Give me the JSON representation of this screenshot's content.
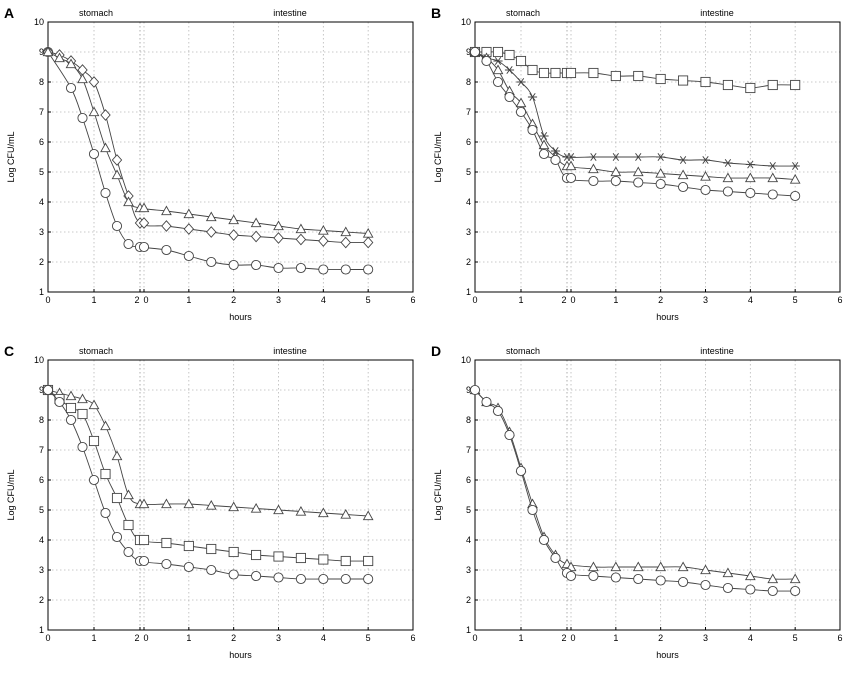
{
  "chart_data": [
    {
      "type": "line",
      "panel_label": "A",
      "ylabel": "Log CFU/mL",
      "xlabel": "hours",
      "stomach_label": "stomach",
      "intestine_label": "intestine",
      "stomach_ticks": [
        "0",
        "1",
        "2"
      ],
      "intestine_ticks": [
        "0",
        "1",
        "2",
        "3",
        "4",
        "5",
        "6"
      ],
      "y_ticks": [
        "1",
        "2",
        "3",
        "4",
        "5",
        "6",
        "7",
        "8",
        "9",
        "10"
      ],
      "xlim_stomach": [
        0,
        2
      ],
      "xlim_intestine": [
        0,
        6
      ],
      "ylim": [
        1,
        10
      ],
      "series": [
        {
          "name": "circle",
          "marker": "circle",
          "stomach": {
            "x": [
              0,
              0.5,
              0.75,
              1.0,
              1.25,
              1.5,
              1.75,
              2.0
            ],
            "y": [
              9.0,
              7.8,
              6.8,
              5.6,
              4.3,
              3.2,
              2.6,
              2.5
            ]
          },
          "intestine": {
            "x": [
              0,
              0.5,
              1.0,
              1.5,
              2.0,
              2.5,
              3.0,
              3.5,
              4.0,
              4.5,
              5.0
            ],
            "y": [
              2.5,
              2.4,
              2.2,
              2.0,
              1.9,
              1.9,
              1.8,
              1.8,
              1.75,
              1.75,
              1.75
            ]
          }
        },
        {
          "name": "diamond",
          "marker": "diamond",
          "stomach": {
            "x": [
              0,
              0.25,
              0.5,
              0.75,
              1.0,
              1.25,
              1.5,
              1.75,
              2.0
            ],
            "y": [
              9.0,
              8.9,
              8.7,
              8.4,
              8.0,
              6.9,
              5.4,
              4.2,
              3.3
            ]
          },
          "intestine": {
            "x": [
              0,
              0.5,
              1.0,
              1.5,
              2.0,
              2.5,
              3.0,
              3.5,
              4.0,
              4.5,
              5.0
            ],
            "y": [
              3.3,
              3.2,
              3.1,
              3.0,
              2.9,
              2.85,
              2.8,
              2.75,
              2.7,
              2.65,
              2.65
            ]
          }
        },
        {
          "name": "triangle",
          "marker": "triangle",
          "stomach": {
            "x": [
              0,
              0.25,
              0.5,
              0.75,
              1.0,
              1.25,
              1.5,
              1.75,
              2.0
            ],
            "y": [
              9.0,
              8.8,
              8.6,
              8.1,
              7.0,
              5.8,
              4.9,
              4.0,
              3.8
            ]
          },
          "intestine": {
            "x": [
              0,
              0.5,
              1.0,
              1.5,
              2.0,
              2.5,
              3.0,
              3.5,
              4.0,
              4.5,
              5.0
            ],
            "y": [
              3.8,
              3.7,
              3.6,
              3.5,
              3.4,
              3.3,
              3.2,
              3.1,
              3.05,
              3.0,
              2.95
            ]
          }
        }
      ]
    },
    {
      "type": "line",
      "panel_label": "B",
      "ylabel": "Log CFU/mL",
      "xlabel": "hours",
      "stomach_label": "stomach",
      "intestine_label": "intestine",
      "stomach_ticks": [
        "0",
        "1",
        "2"
      ],
      "intestine_ticks": [
        "0",
        "1",
        "2",
        "3",
        "4",
        "5",
        "6"
      ],
      "y_ticks": [
        "1",
        "2",
        "3",
        "4",
        "5",
        "6",
        "7",
        "8",
        "9",
        "10"
      ],
      "xlim_stomach": [
        0,
        2
      ],
      "xlim_intestine": [
        0,
        6
      ],
      "ylim": [
        1,
        10
      ],
      "series": [
        {
          "name": "square",
          "marker": "square",
          "stomach": {
            "x": [
              0,
              0.25,
              0.5,
              0.75,
              1.0,
              1.25,
              1.5,
              1.75,
              2.0
            ],
            "y": [
              9.0,
              9.0,
              9.0,
              8.9,
              8.7,
              8.4,
              8.3,
              8.3,
              8.3
            ]
          },
          "intestine": {
            "x": [
              0,
              0.5,
              1.0,
              1.5,
              2.0,
              2.5,
              3.0,
              3.5,
              4.0,
              4.5,
              5.0
            ],
            "y": [
              8.3,
              8.3,
              8.2,
              8.2,
              8.1,
              8.05,
              8.0,
              7.9,
              7.8,
              7.9,
              7.9
            ]
          }
        },
        {
          "name": "star",
          "marker": "star",
          "stomach": {
            "x": [
              0,
              0.25,
              0.5,
              0.75,
              1.0,
              1.25,
              1.5,
              1.75,
              2.0
            ],
            "y": [
              9.0,
              8.8,
              8.7,
              8.4,
              8.0,
              7.5,
              6.2,
              5.7,
              5.5
            ]
          },
          "intestine": {
            "x": [
              0,
              0.5,
              1.0,
              1.5,
              2.0,
              2.5,
              3.0,
              3.5,
              4.0,
              4.5,
              5.0
            ],
            "y": [
              5.5,
              5.5,
              5.5,
              5.5,
              5.5,
              5.4,
              5.4,
              5.3,
              5.25,
              5.2,
              5.2
            ]
          }
        },
        {
          "name": "triangle",
          "marker": "triangle",
          "stomach": {
            "x": [
              0,
              0.25,
              0.5,
              0.75,
              1.0,
              1.25,
              1.5,
              1.75,
              2.0
            ],
            "y": [
              9.0,
              8.8,
              8.4,
              7.7,
              7.3,
              6.6,
              5.9,
              5.5,
              5.2
            ]
          },
          "intestine": {
            "x": [
              0,
              0.5,
              1.0,
              1.5,
              2.0,
              2.5,
              3.0,
              3.5,
              4.0,
              4.5,
              5.0
            ],
            "y": [
              5.2,
              5.1,
              5.0,
              5.0,
              4.95,
              4.9,
              4.85,
              4.8,
              4.8,
              4.8,
              4.75
            ]
          }
        },
        {
          "name": "circle",
          "marker": "circle",
          "stomach": {
            "x": [
              0,
              0.25,
              0.5,
              0.75,
              1.0,
              1.25,
              1.5,
              1.75,
              2.0
            ],
            "y": [
              9.0,
              8.7,
              8.0,
              7.5,
              7.0,
              6.4,
              5.6,
              5.4,
              4.8
            ]
          },
          "intestine": {
            "x": [
              0,
              0.5,
              1.0,
              1.5,
              2.0,
              2.5,
              3.0,
              3.5,
              4.0,
              4.5,
              5.0
            ],
            "y": [
              4.8,
              4.7,
              4.7,
              4.65,
              4.6,
              4.5,
              4.4,
              4.35,
              4.3,
              4.25,
              4.2
            ]
          }
        }
      ]
    },
    {
      "type": "line",
      "panel_label": "C",
      "ylabel": "Log CFU/mL",
      "xlabel": "hours",
      "stomach_label": "stomach",
      "intestine_label": "intestine",
      "stomach_ticks": [
        "0",
        "1",
        "2"
      ],
      "intestine_ticks": [
        "0",
        "1",
        "2",
        "3",
        "4",
        "5",
        "6"
      ],
      "y_ticks": [
        "1",
        "2",
        "3",
        "4",
        "5",
        "6",
        "7",
        "8",
        "9",
        "10"
      ],
      "xlim_stomach": [
        0,
        2
      ],
      "xlim_intestine": [
        0,
        6
      ],
      "ylim": [
        1,
        10
      ],
      "series": [
        {
          "name": "triangle",
          "marker": "triangle",
          "stomach": {
            "x": [
              0,
              0.25,
              0.5,
              0.75,
              1.0,
              1.25,
              1.5,
              1.75,
              2.0
            ],
            "y": [
              9.0,
              8.9,
              8.8,
              8.7,
              8.5,
              7.8,
              6.8,
              5.5,
              5.2
            ]
          },
          "intestine": {
            "x": [
              0,
              0.5,
              1.0,
              1.5,
              2.0,
              2.5,
              3.0,
              3.5,
              4.0,
              4.5,
              5.0
            ],
            "y": [
              5.2,
              5.2,
              5.2,
              5.15,
              5.1,
              5.05,
              5.0,
              4.95,
              4.9,
              4.85,
              4.8
            ]
          }
        },
        {
          "name": "square",
          "marker": "square",
          "stomach": {
            "x": [
              0,
              0.25,
              0.5,
              0.75,
              1.0,
              1.25,
              1.5,
              1.75,
              2.0
            ],
            "y": [
              9.0,
              8.7,
              8.4,
              8.2,
              7.3,
              6.2,
              5.4,
              4.5,
              4.0
            ]
          },
          "intestine": {
            "x": [
              0,
              0.5,
              1.0,
              1.5,
              2.0,
              2.5,
              3.0,
              3.5,
              4.0,
              4.5,
              5.0
            ],
            "y": [
              4.0,
              3.9,
              3.8,
              3.7,
              3.6,
              3.5,
              3.45,
              3.4,
              3.35,
              3.3,
              3.3
            ]
          }
        },
        {
          "name": "circle",
          "marker": "circle",
          "stomach": {
            "x": [
              0,
              0.25,
              0.5,
              0.75,
              1.0,
              1.25,
              1.5,
              1.75,
              2.0
            ],
            "y": [
              9.0,
              8.6,
              8.0,
              7.1,
              6.0,
              4.9,
              4.1,
              3.6,
              3.3
            ]
          },
          "intestine": {
            "x": [
              0,
              0.5,
              1.0,
              1.5,
              2.0,
              2.5,
              3.0,
              3.5,
              4.0,
              4.5,
              5.0
            ],
            "y": [
              3.3,
              3.2,
              3.1,
              3.0,
              2.85,
              2.8,
              2.75,
              2.7,
              2.7,
              2.7,
              2.7
            ]
          }
        }
      ]
    },
    {
      "type": "line",
      "panel_label": "D",
      "ylabel": "Log CFU/mL",
      "xlabel": "hours",
      "stomach_label": "stomach",
      "intestine_label": "intestine",
      "stomach_ticks": [
        "0",
        "1",
        "2"
      ],
      "intestine_ticks": [
        "0",
        "1",
        "2",
        "3",
        "4",
        "5",
        "6"
      ],
      "y_ticks": [
        "1",
        "2",
        "3",
        "4",
        "5",
        "6",
        "7",
        "8",
        "9",
        "10"
      ],
      "xlim_stomach": [
        0,
        2
      ],
      "xlim_intestine": [
        0,
        6
      ],
      "ylim": [
        1,
        10
      ],
      "series": [
        {
          "name": "triangle",
          "marker": "triangle",
          "stomach": {
            "x": [
              0,
              0.25,
              0.5,
              0.75,
              1.0,
              1.25,
              1.5,
              1.75,
              2.0
            ],
            "y": [
              9.0,
              8.6,
              8.4,
              7.6,
              6.4,
              5.2,
              4.1,
              3.5,
              3.2
            ]
          },
          "intestine": {
            "x": [
              0,
              0.5,
              1.0,
              1.5,
              2.0,
              2.5,
              3.0,
              3.5,
              4.0,
              4.5,
              5.0
            ],
            "y": [
              3.1,
              3.1,
              3.1,
              3.1,
              3.1,
              3.1,
              3.0,
              2.9,
              2.8,
              2.7,
              2.7
            ]
          }
        },
        {
          "name": "circle",
          "marker": "circle",
          "stomach": {
            "x": [
              0,
              0.25,
              0.5,
              0.75,
              1.0,
              1.25,
              1.5,
              1.75,
              2.0
            ],
            "y": [
              9.0,
              8.6,
              8.3,
              7.5,
              6.3,
              5.0,
              4.0,
              3.4,
              2.9
            ]
          },
          "intestine": {
            "x": [
              0,
              0.5,
              1.0,
              1.5,
              2.0,
              2.5,
              3.0,
              3.5,
              4.0,
              4.5,
              5.0
            ],
            "y": [
              2.8,
              2.8,
              2.75,
              2.7,
              2.65,
              2.6,
              2.5,
              2.4,
              2.35,
              2.3,
              2.3
            ]
          }
        }
      ]
    }
  ]
}
